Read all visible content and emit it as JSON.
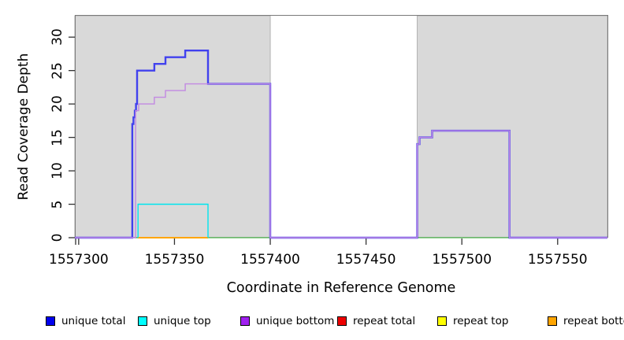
{
  "chart_data": {
    "type": "line",
    "step": true,
    "title": "",
    "xlabel": "Coordinate in Reference Genome",
    "ylabel": "Read Coverage Depth",
    "xlim": [
      1557298,
      1557576
    ],
    "ylim": [
      0,
      33.2
    ],
    "x_ticks": [
      "1557300",
      "1557350",
      "1557400",
      "1557450",
      "1557500",
      "1557550"
    ],
    "x_tick_values": [
      1557300,
      1557350,
      1557400,
      1557450,
      1557500,
      1557550
    ],
    "y_ticks": [
      "0",
      "5",
      "10",
      "15",
      "20",
      "25",
      "30"
    ],
    "y_tick_values": [
      0,
      5,
      10,
      15,
      20,
      25,
      30
    ],
    "grid": false,
    "panel_color": "#d9d9d9",
    "panel_border_color": "#b2b2b2",
    "box_color": "#7a7a7a",
    "tick_color": "#333333",
    "panels": [
      {
        "from": 1557298,
        "to": 1557400
      },
      {
        "from": 1557476.7,
        "to": 1557576
      }
    ],
    "series": [
      {
        "name": "repeat total",
        "color": "#ee0000",
        "width": 1,
        "points": [
          [
            1557298,
            0
          ],
          [
            1557576,
            0
          ]
        ]
      },
      {
        "name": "repeat top",
        "color": "#ffff00",
        "width": 1,
        "points": [
          [
            1557298,
            0
          ],
          [
            1557576,
            0
          ]
        ]
      },
      {
        "name": "baseline-artifact-green-1",
        "color": "#6cc46c",
        "width": 1.6,
        "points": [
          [
            1557329.3,
            0
          ],
          [
            1557331,
            0
          ]
        ]
      },
      {
        "name": "baseline-artifact-green-2",
        "color": "#6cc46c",
        "width": 1.6,
        "points": [
          [
            1557367.5,
            0
          ],
          [
            1557400,
            0
          ]
        ]
      },
      {
        "name": "baseline-artifact-green-3",
        "color": "#6cc46c",
        "width": 1.6,
        "points": [
          [
            1557476.7,
            0
          ],
          [
            1557524.9,
            0
          ]
        ]
      },
      {
        "name": "unique total",
        "color": "#4141ee",
        "width": 2.4,
        "points": [
          [
            1557298,
            0
          ],
          [
            1557328,
            0
          ],
          [
            1557328,
            17
          ],
          [
            1557328.6,
            17
          ],
          [
            1557328.6,
            18
          ],
          [
            1557329.3,
            18
          ],
          [
            1557329.3,
            19
          ],
          [
            1557329.9,
            19
          ],
          [
            1557329.9,
            20
          ],
          [
            1557330.5,
            20
          ],
          [
            1557330.5,
            25
          ],
          [
            1557339.5,
            25
          ],
          [
            1557339.5,
            26
          ],
          [
            1557345.3,
            26
          ],
          [
            1557345.3,
            27
          ],
          [
            1557355.6,
            27
          ],
          [
            1557355.6,
            28
          ],
          [
            1557367.5,
            28
          ],
          [
            1557367.5,
            23
          ],
          [
            1557400,
            23
          ],
          [
            1557400,
            0
          ],
          [
            1557476.7,
            0
          ],
          [
            1557476.7,
            14
          ],
          [
            1557477.9,
            14
          ],
          [
            1557477.9,
            15
          ],
          [
            1557484.5,
            15
          ],
          [
            1557484.5,
            16
          ],
          [
            1557524.9,
            16
          ],
          [
            1557524.9,
            0
          ],
          [
            1557576,
            0
          ]
        ]
      },
      {
        "name": "unique bottom",
        "color": "#c289e2",
        "width": 1.4,
        "points": [
          [
            1557298,
            0
          ],
          [
            1557329.7,
            0
          ],
          [
            1557329.7,
            19
          ],
          [
            1557331.3,
            19
          ],
          [
            1557331.3,
            20
          ],
          [
            1557339.5,
            20
          ],
          [
            1557339.5,
            21
          ],
          [
            1557345.3,
            21
          ],
          [
            1557345.3,
            22
          ],
          [
            1557355.6,
            22
          ],
          [
            1557355.6,
            23
          ],
          [
            1557400,
            23
          ],
          [
            1557400,
            0
          ],
          [
            1557476.7,
            0
          ],
          [
            1557476.7,
            14
          ],
          [
            1557477.9,
            14
          ],
          [
            1557477.9,
            15
          ],
          [
            1557484.5,
            15
          ],
          [
            1557484.5,
            16
          ],
          [
            1557524.9,
            16
          ],
          [
            1557524.9,
            0
          ],
          [
            1557576,
            0
          ]
        ]
      },
      {
        "name": "repeat bottom",
        "color": "#ffa500",
        "width": 2,
        "points": [
          [
            1557331,
            0
          ],
          [
            1557367.5,
            0
          ]
        ]
      },
      {
        "name": "unique top",
        "color": "#00e5ee",
        "width": 1.4,
        "points": [
          [
            1557331,
            0
          ],
          [
            1557331,
            5
          ],
          [
            1557367.5,
            5
          ],
          [
            1557367.5,
            0
          ]
        ]
      }
    ],
    "legend": [
      {
        "label": "unique total",
        "color": "#0000ee"
      },
      {
        "label": "unique top",
        "color": "#00ffff"
      },
      {
        "label": "unique bottom",
        "color": "#a020f0"
      },
      {
        "label": "repeat total",
        "color": "#ee0000"
      },
      {
        "label": "repeat top",
        "color": "#ffff00"
      },
      {
        "label": "repeat bottom",
        "color": "#ffa500"
      }
    ],
    "legend_position": "bottom"
  }
}
